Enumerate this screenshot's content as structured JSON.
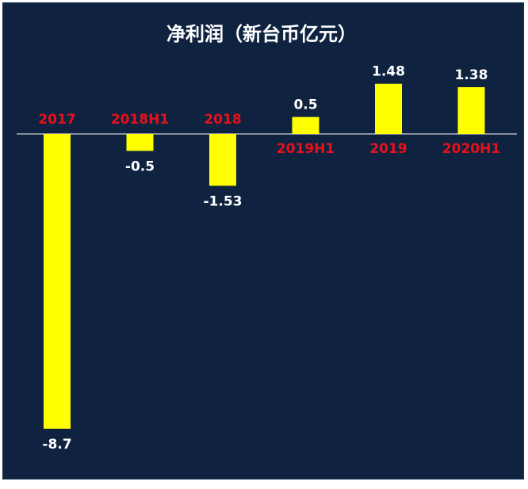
{
  "chart_data": {
    "type": "bar",
    "title": "净利润（新台币亿元）",
    "categories": [
      "2017",
      "2018H1",
      "2018",
      "2019H1",
      "2019",
      "2020H1"
    ],
    "values": [
      -8.7,
      -0.5,
      -1.53,
      0.5,
      1.48,
      1.38
    ],
    "value_labels": [
      "-8.7",
      "-0.5",
      "-1.53",
      "0.5",
      "1.48",
      "1.38"
    ],
    "xlabel": "",
    "ylabel": "",
    "grid": false,
    "legend": "none",
    "colors": {
      "background": "#0f2341",
      "bar": "#ffff00",
      "category_label": "#e8101a",
      "value_label": "#ffffff",
      "axis": "#ffffff"
    }
  }
}
